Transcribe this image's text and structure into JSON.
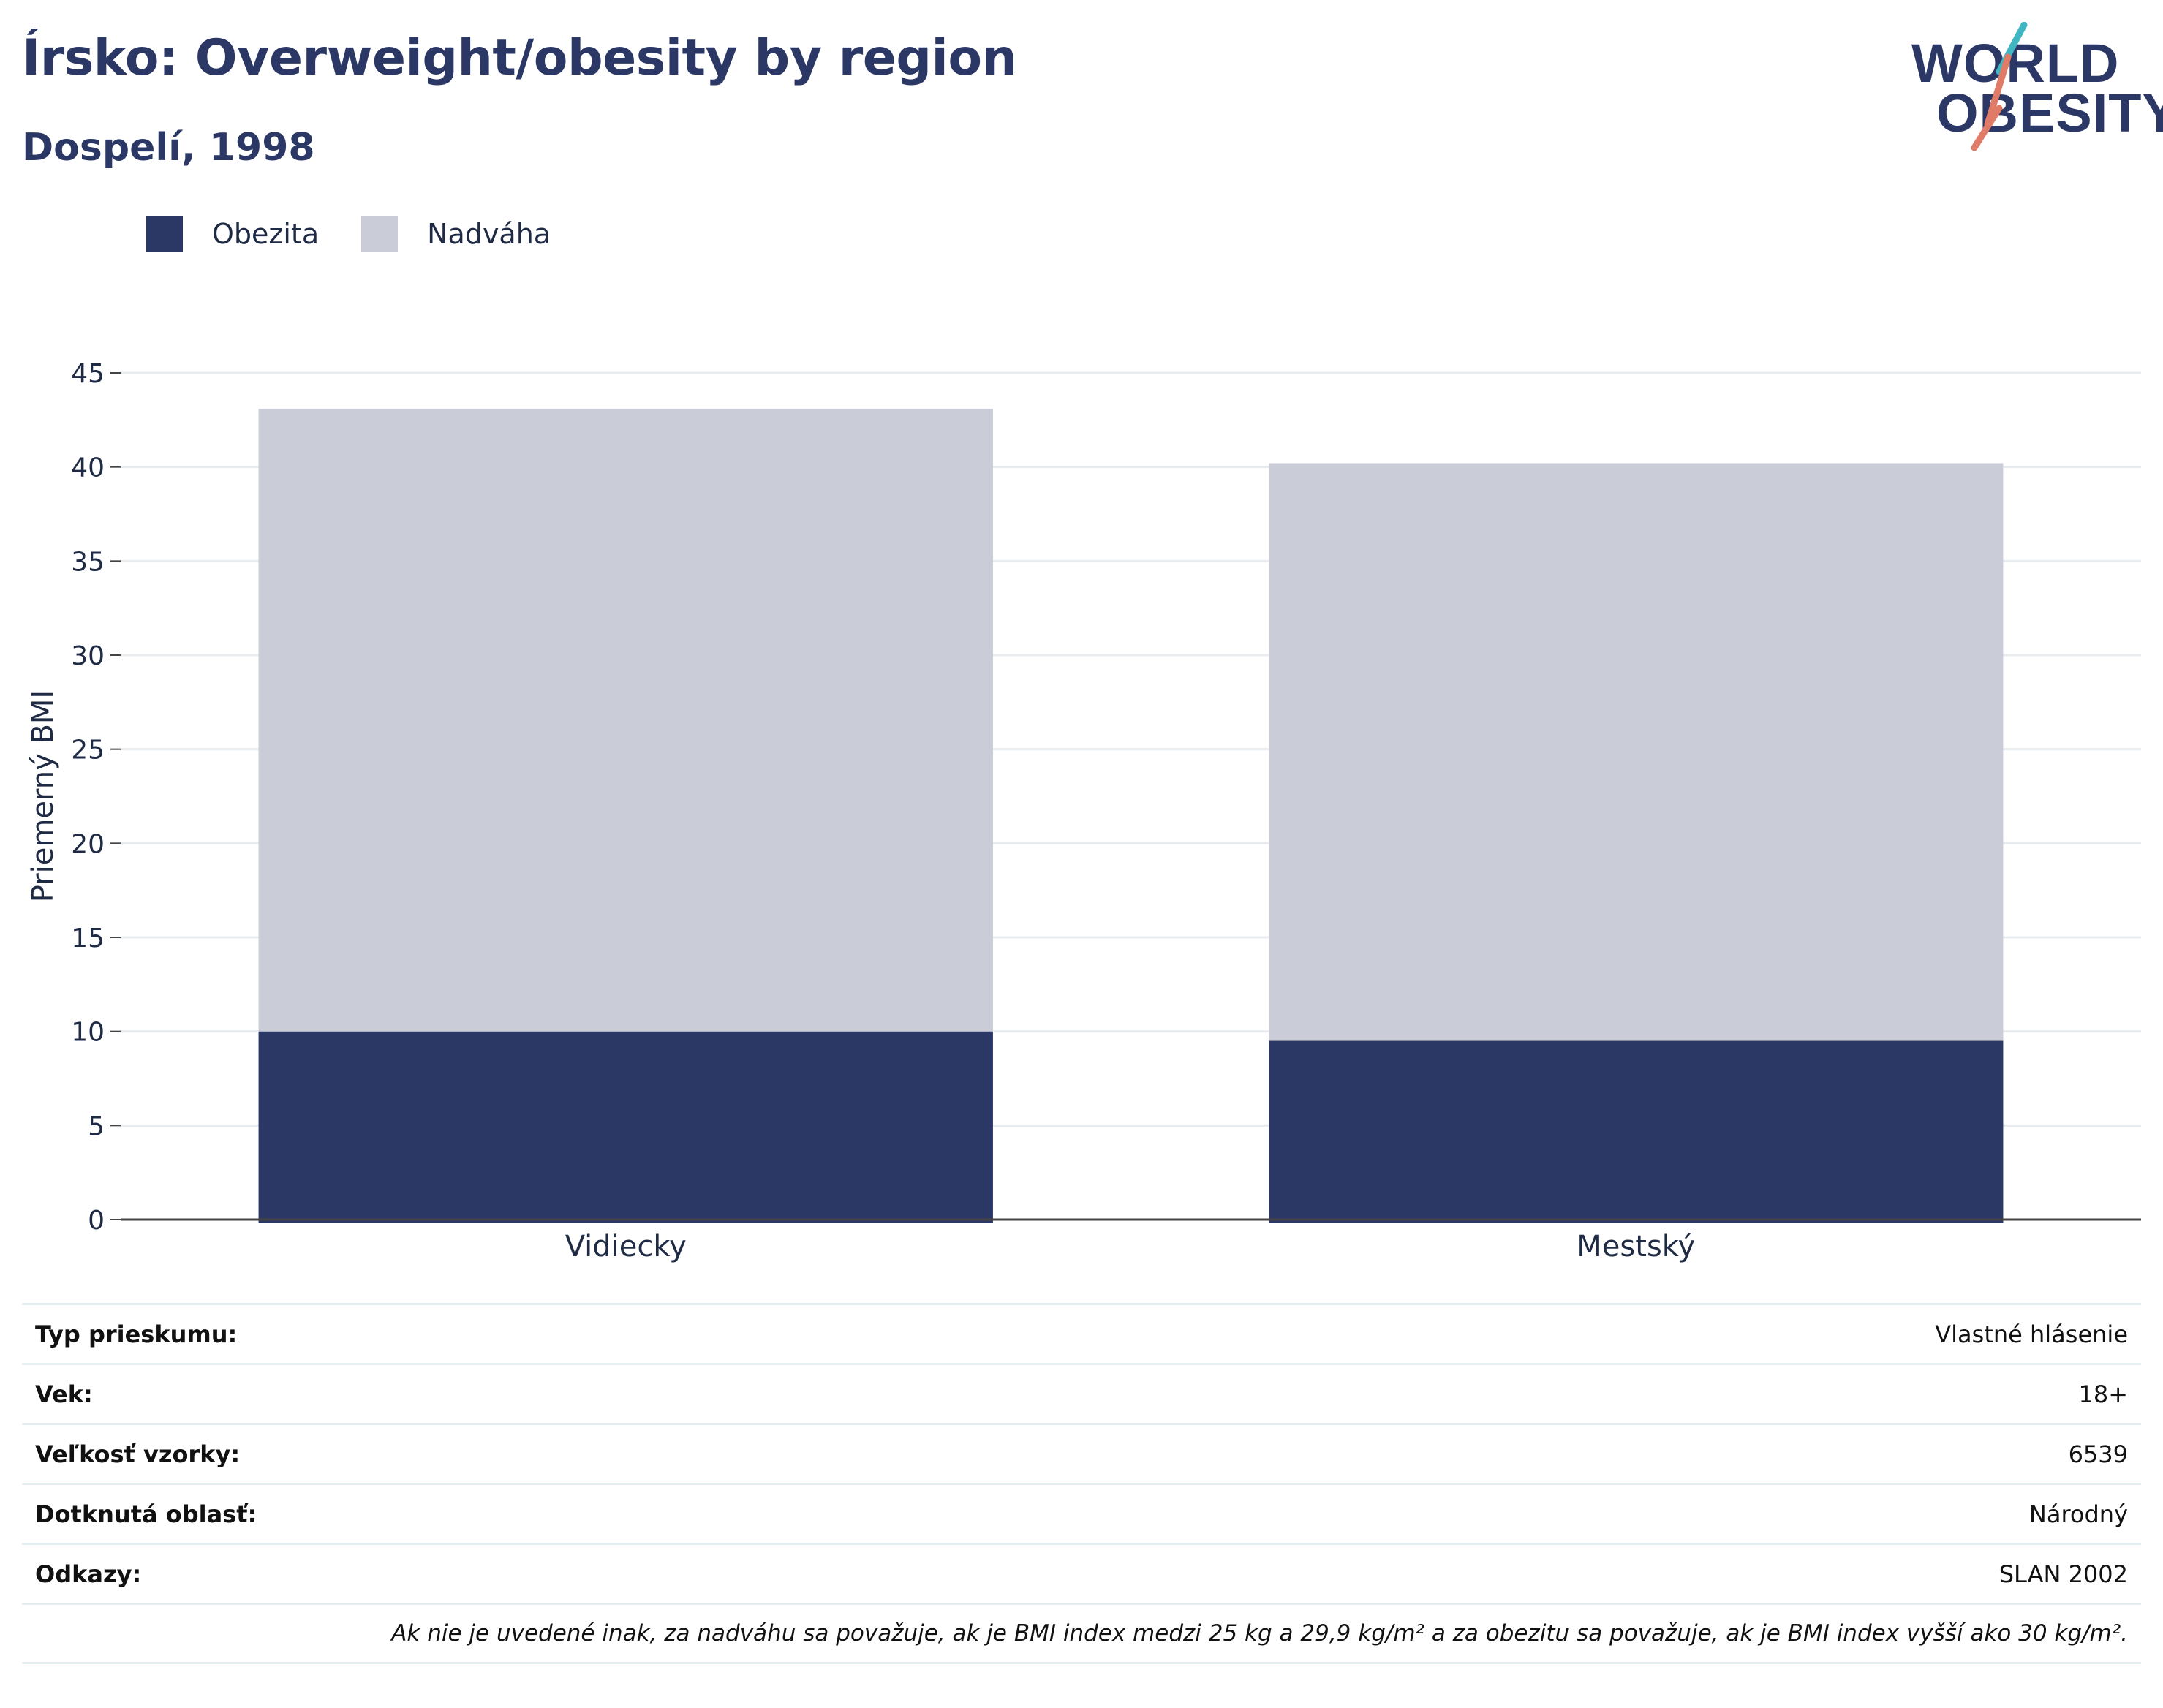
{
  "header": {
    "title": "Írsko: Overweight/obesity by region",
    "subtitle": "Dospelí, 1998"
  },
  "logo": {
    "line1": "WORLD",
    "line2": "OBESITY",
    "accent_colors": [
      "#3fb6c1",
      "#e07b67"
    ]
  },
  "legend": [
    {
      "label": "Obezita",
      "color": "#2b3764"
    },
    {
      "label": "Nadváha",
      "color": "#cacdd8"
    }
  ],
  "chart_data": {
    "type": "bar",
    "stacked": true,
    "categories": [
      "Vidiecky",
      "Mestský"
    ],
    "series": [
      {
        "name": "Obezita",
        "values": [
          10.0,
          9.5
        ],
        "color": "#2b3764"
      },
      {
        "name": "Nadváha",
        "values": [
          33.1,
          30.7
        ],
        "color": "#cacdd8"
      }
    ],
    "ylabel": "Priemerný BMI",
    "ylim": [
      0,
      45
    ],
    "yticks": [
      0,
      5,
      10,
      15,
      20,
      25,
      30,
      35,
      40,
      45
    ],
    "grid": true,
    "legend_position": "top-left"
  },
  "info": [
    {
      "key": "Typ prieskumu:",
      "value": "Vlastné hlásenie"
    },
    {
      "key": "Vek:",
      "value": "18+"
    },
    {
      "key": "Veľkosť vzorky:",
      "value": "6539"
    },
    {
      "key": "Dotknutá oblasť:",
      "value": "Národný"
    },
    {
      "key": "Odkazy:",
      "value": "SLAN 2002"
    }
  ],
  "note": "Ak nie je uvedené inak, za nadváhu sa považuje, ak je BMI index medzi 25 kg a 29,9 kg/m² a za obezitu sa považuje, ak je BMI index vyšší ako 30 kg/m²."
}
